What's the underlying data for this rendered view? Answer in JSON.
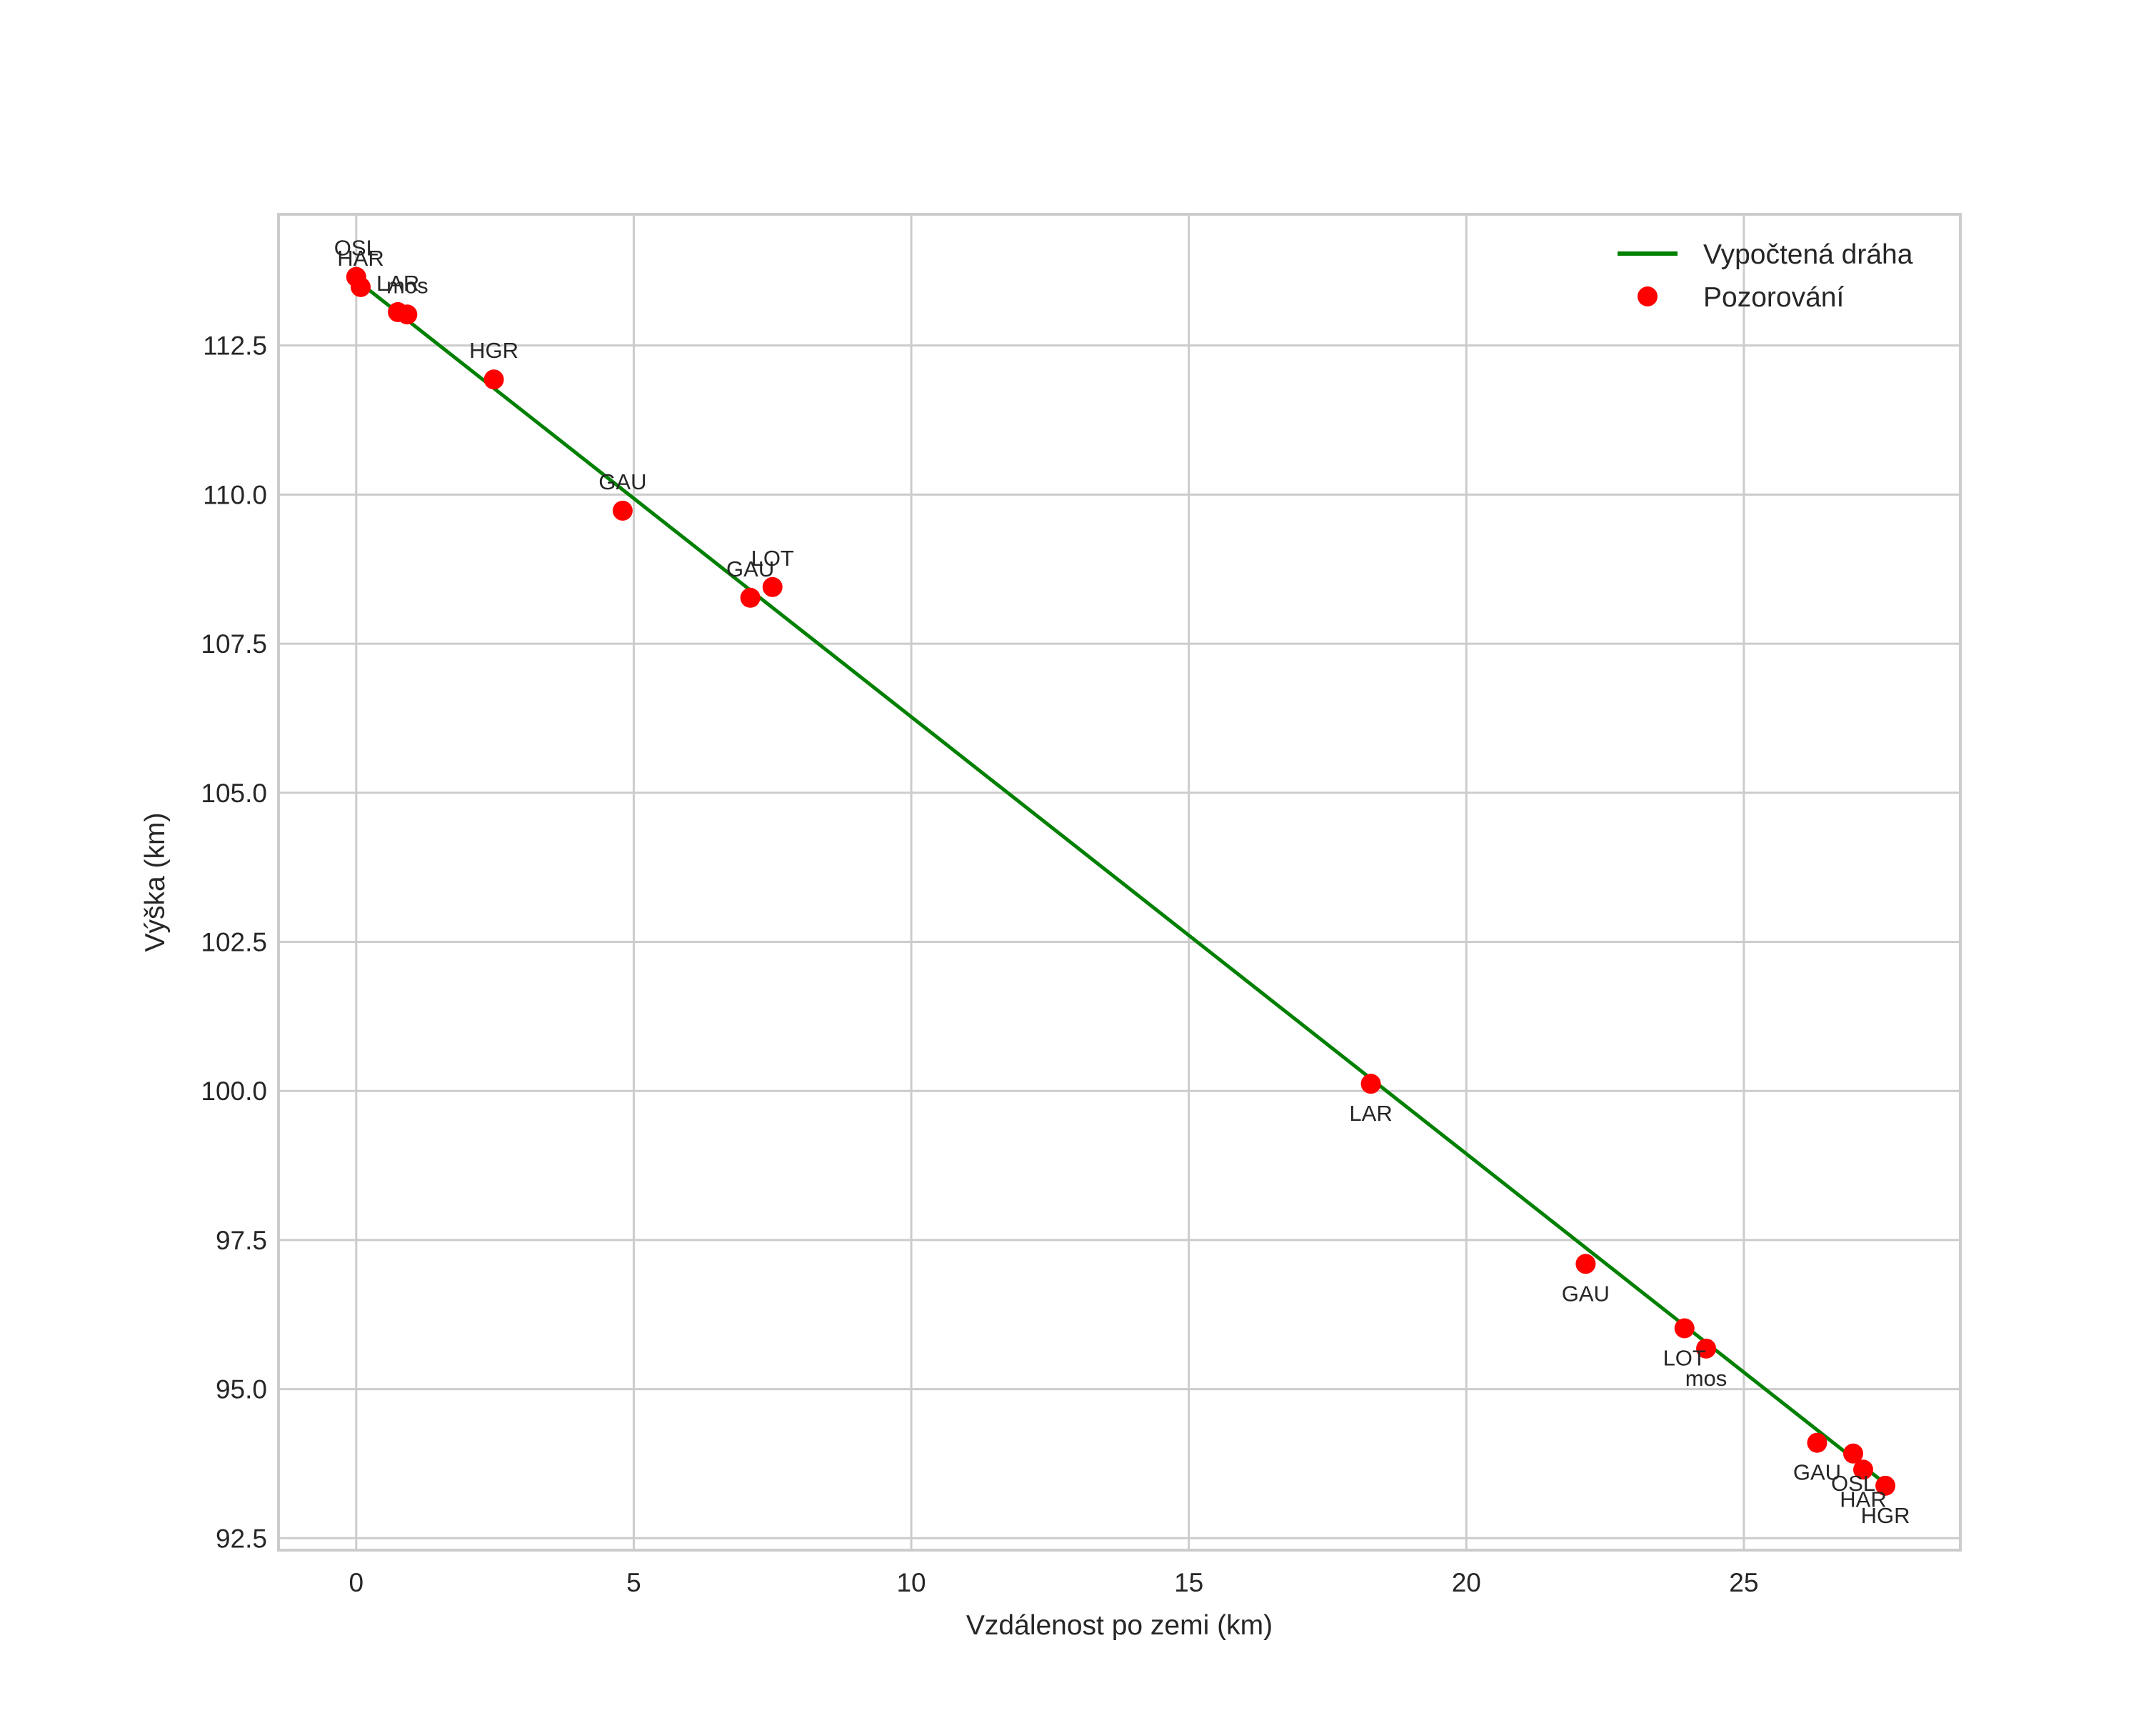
{
  "chart_data": {
    "type": "scatter",
    "title": "",
    "xlabel": "Vzdálenost po zemi (km)",
    "ylabel": "Výška (km)",
    "xlim": [
      -1.4,
      28.9
    ],
    "ylim": [
      92.3,
      114.7
    ],
    "xticks": [
      0,
      5,
      10,
      15,
      20,
      25
    ],
    "xtick_labels": [
      "0",
      "5",
      "10",
      "15",
      "20",
      "25"
    ],
    "yticks": [
      92.5,
      95.0,
      97.5,
      100.0,
      102.5,
      105.0,
      107.5,
      110.0,
      112.5
    ],
    "ytick_labels": [
      "92.5",
      "95.0",
      "97.5",
      "100.0",
      "102.5",
      "105.0",
      "107.5",
      "110.0",
      "112.5"
    ],
    "grid": true,
    "legend_position": "upper right",
    "series": [
      {
        "name": "Vypočtená dráha",
        "type": "line",
        "color": "#008000",
        "x": [
          0.0,
          27.5
        ],
        "y": [
          113.6,
          93.45
        ]
      },
      {
        "name": "Pozorování",
        "type": "scatter",
        "color": "#ff0000",
        "points": [
          {
            "label": "OSL",
            "x": 0.0,
            "y": 113.65,
            "pos": "above"
          },
          {
            "label": "HAR",
            "x": 0.08,
            "y": 113.48,
            "pos": "above"
          },
          {
            "label": "LAR",
            "x": 0.75,
            "y": 113.06,
            "pos": "above"
          },
          {
            "label": "mos",
            "x": 0.92,
            "y": 113.02,
            "pos": "above"
          },
          {
            "label": "HGR",
            "x": 2.48,
            "y": 111.93,
            "pos": "above"
          },
          {
            "label": "GAU",
            "x": 4.8,
            "y": 109.73,
            "pos": "above"
          },
          {
            "label": "GAU",
            "x": 7.1,
            "y": 108.27,
            "pos": "above"
          },
          {
            "label": "LOT",
            "x": 7.5,
            "y": 108.45,
            "pos": "above"
          },
          {
            "label": "LAR",
            "x": 18.28,
            "y": 100.12,
            "pos": "below"
          },
          {
            "label": "GAU",
            "x": 22.15,
            "y": 97.1,
            "pos": "below"
          },
          {
            "label": "LOT",
            "x": 23.93,
            "y": 96.02,
            "pos": "below"
          },
          {
            "label": "mos",
            "x": 24.32,
            "y": 95.68,
            "pos": "below"
          },
          {
            "label": "GAU",
            "x": 26.32,
            "y": 94.1,
            "pos": "below"
          },
          {
            "label": "OSL",
            "x": 26.97,
            "y": 93.92,
            "pos": "below"
          },
          {
            "label": "HAR",
            "x": 27.15,
            "y": 93.65,
            "pos": "below"
          },
          {
            "label": "HGR",
            "x": 27.55,
            "y": 93.38,
            "pos": "below"
          }
        ]
      }
    ]
  },
  "legend": {
    "items": [
      {
        "label": "Vypočtená dráha",
        "symbol": "line",
        "color": "#008000"
      },
      {
        "label": "Pozorování",
        "symbol": "dot",
        "color": "#ff0000"
      }
    ]
  },
  "colors": {
    "grid": "#cccccc",
    "frame": "#cccccc",
    "text": "#262626"
  }
}
